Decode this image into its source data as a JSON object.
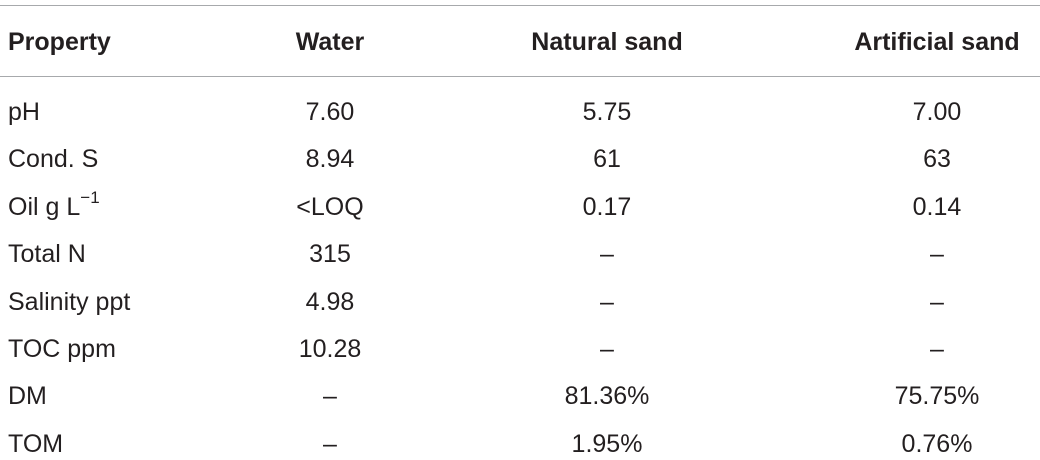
{
  "table": {
    "header": [
      "Property",
      "Water",
      "Natural sand",
      "Artificial sand"
    ],
    "rows": [
      [
        "pH",
        "7.60",
        "5.75",
        "7.00"
      ],
      [
        "Cond. S",
        "8.94",
        "61",
        "63"
      ],
      [
        {
          "text": "Oil g L",
          "sup": "−1"
        },
        "<LOQ",
        "0.17",
        "0.14"
      ],
      [
        "Total N",
        "315",
        "–",
        "–"
      ],
      [
        "Salinity ppt",
        "4.98",
        "–",
        "–"
      ],
      [
        "TOC ppm",
        "10.28",
        "–",
        "–"
      ],
      [
        "DM",
        "–",
        "81.36%",
        "75.75%"
      ],
      [
        "TOM",
        "–",
        "1.95%",
        "0.76%"
      ]
    ]
  }
}
